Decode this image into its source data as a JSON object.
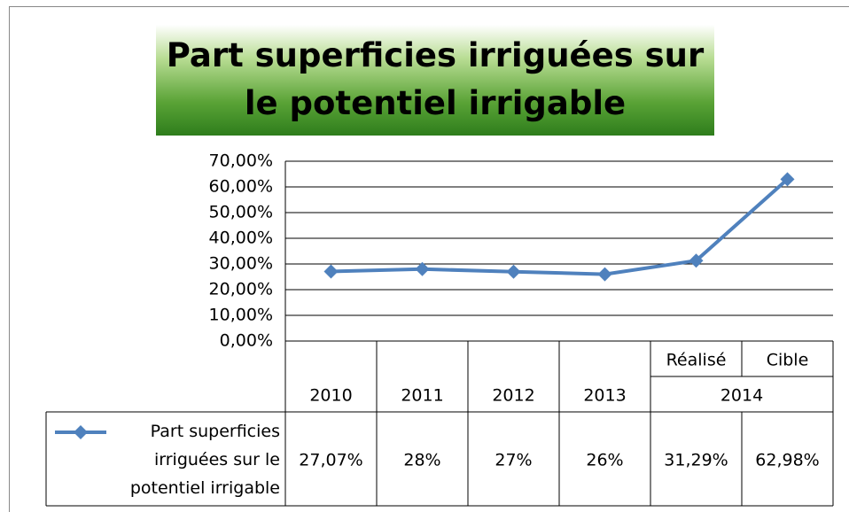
{
  "chart_data": {
    "type": "line",
    "title": "Part superficies irriguées sur le potentiel irrigable",
    "categories": [
      "2010",
      "2011",
      "2012",
      "2013",
      "Réalisé",
      "Cible"
    ],
    "category_groups": [
      {
        "label": "2014",
        "start": 4,
        "span": 2
      }
    ],
    "series": [
      {
        "name": "Part superficies irriguées sur le potentiel irrigable",
        "color": "#4f81bd",
        "values": [
          27.07,
          28,
          27,
          26,
          31.29,
          62.98
        ],
        "value_labels": [
          "27,07%",
          "28%",
          "27%",
          "26%",
          "31,29%",
          "62,98%"
        ]
      }
    ],
    "ylim": [
      0,
      70
    ],
    "yticks": [
      {
        "value": 0,
        "label": "0,00%"
      },
      {
        "value": 10,
        "label": "10,00%"
      },
      {
        "value": 20,
        "label": "20,00%"
      },
      {
        "value": 30,
        "label": "30,00%"
      },
      {
        "value": 40,
        "label": "40,00%"
      },
      {
        "value": 50,
        "label": "50,00%"
      },
      {
        "value": 60,
        "label": "60,00%"
      },
      {
        "value": 70,
        "label": "70,00%"
      }
    ],
    "grid": true,
    "data_table": true
  }
}
